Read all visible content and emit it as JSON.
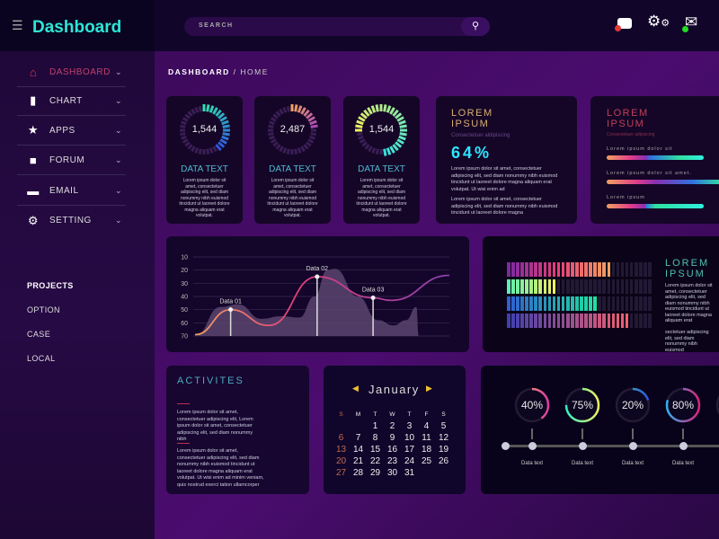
{
  "app": {
    "title": "Dashboard",
    "menu_icon": "hamburger-icon"
  },
  "search": {
    "placeholder": "SEARCH",
    "icon": "search-icon"
  },
  "header_icons": [
    {
      "name": "chat-icon",
      "badge": "#e53935"
    },
    {
      "name": "gear-icon"
    },
    {
      "name": "mail-icon",
      "badge": "#22dd22"
    }
  ],
  "sidebar": {
    "items": [
      {
        "label": "DASHBOARD",
        "icon": "home-icon",
        "active": true
      },
      {
        "label": "CHART",
        "icon": "bar-chart-icon"
      },
      {
        "label": "APPS",
        "icon": "star-icon"
      },
      {
        "label": "FORUM",
        "icon": "speech-bubble-icon"
      },
      {
        "label": "EMAIL",
        "icon": "envelope-icon"
      },
      {
        "label": "SETTING",
        "icon": "gears-icon"
      }
    ],
    "projects_title": "PROJECTS",
    "projects": [
      "OPTION",
      "CASE",
      "LOCAL"
    ]
  },
  "breadcrumb": {
    "root": "DASHBOARD",
    "sep": "/",
    "current": "HOME"
  },
  "stat_cards": [
    {
      "value": "1,544",
      "fill": 0.4,
      "start": 0,
      "title": "DATA TEXT",
      "text": "Lorem ipsum dolor sit amet, consectetuer adipiscing elit, sed diam nonummy nibh euismod tincidunt ut laoreet dolore magna aliquam erat volutpat."
    },
    {
      "value": "2,487",
      "fill": 0.25,
      "start": 0,
      "title": "DATA TEXT",
      "text": "Lorem ipsum dolor sit amet, consectetuer adipiscing elit, sed diam nonummy nibh euismod tincidunt ut laoreet dolore magna aliquam erat volutpat."
    },
    {
      "value": "1,544",
      "fill": 0.75,
      "start": -0.25,
      "title": "DATA TEXT",
      "text": "Lorem ipsum dolor sit amet, consectetuer adipiscing elit, sed diam nonummy nibh euismod tincidunt ut laoreet dolore magna aliquam erat volutpat."
    }
  ],
  "percent_card": {
    "title1": "LOREM",
    "title2": "IPSUM",
    "subtitle": "Consectetuer aldipiscing",
    "value": "64%",
    "text1": "Lorem ipsum dolor sit amet, consectetuer adipiscing elit, sed diam nonummy nibh euismod tincidunt ut laoreet dolore magna aliquam erat volutpat. Ut wisi enim ad",
    "text2": "Lorem ipsum dolor sit amet, consectetuer adipiscing elit, sed diam nonummy nibh euismod tincidunt ut laoreet dolore magna"
  },
  "progress_card": {
    "title1": "LOREM",
    "title2": "IPSUM",
    "subtitle": "Consectetuer adipiscing",
    "bars": [
      {
        "label": "Lorem ipsum dolor sit"
      },
      {
        "label": "Lorem ipsum dolor sit amet."
      },
      {
        "label": "Lorem ipsum"
      }
    ]
  },
  "chart_data": {
    "type": "area",
    "yticks": [
      10,
      20,
      30,
      40,
      50,
      60,
      70
    ],
    "ylim": [
      10,
      70
    ],
    "y_inverted": true,
    "line": [
      [
        0,
        69
      ],
      [
        14,
        50
      ],
      [
        29,
        62
      ],
      [
        48,
        25
      ],
      [
        70,
        41
      ],
      [
        77,
        43
      ],
      [
        100,
        24
      ]
    ],
    "area": [
      [
        0,
        70
      ],
      [
        10,
        48
      ],
      [
        17,
        46
      ],
      [
        26,
        57
      ],
      [
        34,
        55
      ],
      [
        41,
        56
      ],
      [
        47,
        40
      ],
      [
        52,
        20
      ],
      [
        55,
        19
      ],
      [
        64,
        40
      ],
      [
        72,
        58
      ],
      [
        78,
        62
      ],
      [
        83,
        58
      ],
      [
        87,
        48
      ],
      [
        88,
        70
      ]
    ],
    "annotations": [
      {
        "label": "Data 01",
        "x": 14,
        "y": 50
      },
      {
        "label": "Data 02",
        "x": 48,
        "y": 25
      },
      {
        "label": "Data 03",
        "x": 70,
        "y": 41
      }
    ]
  },
  "segment_bars": {
    "total": 32,
    "rows": [
      {
        "filled": 23,
        "colors": [
          "#7b2aa0",
          "#e8407a",
          "#f0a060"
        ]
      },
      {
        "filled": 11,
        "colors": [
          "#5ef0b0",
          "#f0f060"
        ]
      },
      {
        "filled": 20,
        "colors": [
          "#3060d0",
          "#20e0a0"
        ]
      },
      {
        "filled": 27,
        "colors": [
          "#4040b0",
          "#f06070"
        ]
      }
    ],
    "title1": "LOREM",
    "title2": "IPSUM",
    "text1": "Lorem ipsum dolor sit amet, consectetuer adipiscing elit, sed diam nonummy nibh euismod tincidunt ut laoreet dolore magna aliquam erat",
    "text2": "sectetuer adipiscing elit, sed diam nonummy nibh euismod"
  },
  "activities": {
    "title": "ACTIVITES",
    "text1": "Lorem ipsum dolor sit amet, consectetuer adipiscing elit, Lorem ipsum dolor sit amet, consectetuer adipiscing elit, sed diam nonummy nibh",
    "text2": "Lorem ipsum dolor sit amet, consectetuer adipiscing elit, sed diam nonummy nibh euismod tincidunt ut laoreet dolore magna aliquam erat volutpat. Ut wisi enim ad minim veniam, quis nostrud exerci tation ullamcorper"
  },
  "calendar": {
    "month": "January",
    "weekdays": [
      "S",
      "M",
      "T",
      "W",
      "T",
      "F",
      "S"
    ],
    "first_weekday": 2,
    "days": 31
  },
  "gauges": [
    {
      "label": "40%",
      "value": 0.4,
      "caption": "Data text"
    },
    {
      "label": "75%",
      "value": 0.75,
      "caption": "Data text"
    },
    {
      "label": "20%",
      "value": 0.2,
      "caption": "Data text"
    },
    {
      "label": "80%",
      "value": 0.8,
      "caption": "Data text"
    },
    {
      "label": "",
      "value": 0.5,
      "caption": "Data text"
    }
  ],
  "colors": {
    "accent": "#2ee6d6",
    "active": "#e0325c",
    "percent": "#2ee6ff"
  }
}
